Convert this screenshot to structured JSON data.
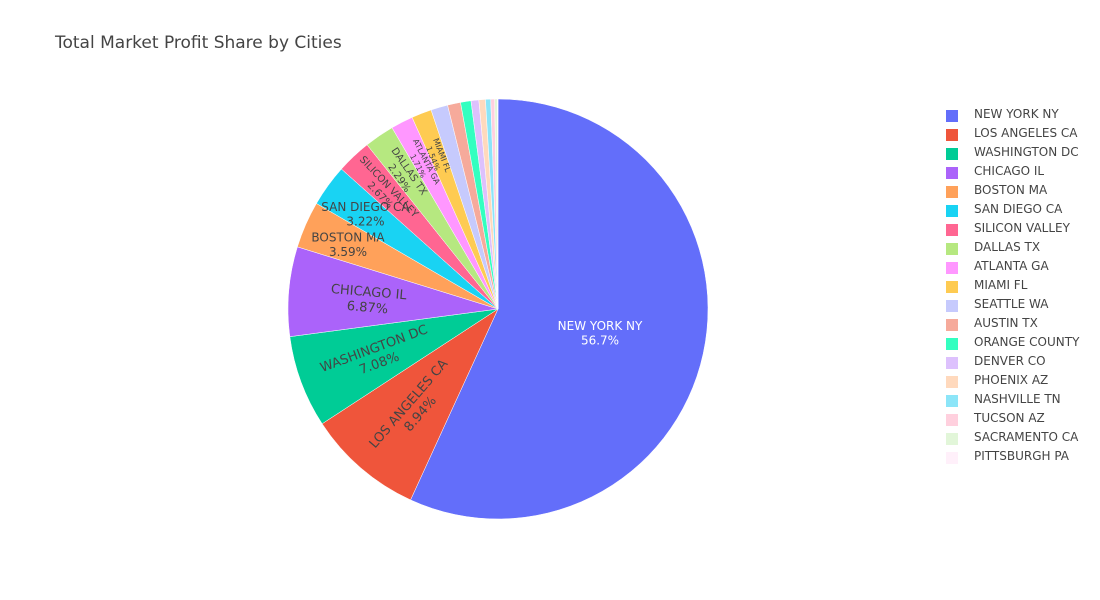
{
  "chart_data": {
    "type": "pie",
    "title": "Total Market Profit Share by Cities",
    "legend_position": "right",
    "direction": "clockwise",
    "start": "top",
    "slices": [
      {
        "label": "NEW YORK NY",
        "value": 56.7,
        "pct": "56.7%",
        "color": "#636efa"
      },
      {
        "label": "LOS ANGELES CA",
        "value": 8.94,
        "pct": "8.94%",
        "color": "#EF553B"
      },
      {
        "label": "WASHINGTON DC",
        "value": 7.08,
        "pct": "7.08%",
        "color": "#00cc96"
      },
      {
        "label": "CHICAGO IL",
        "value": 6.87,
        "pct": "6.87%",
        "color": "#ab63fa"
      },
      {
        "label": "BOSTON MA",
        "value": 3.59,
        "pct": "3.59%",
        "color": "#FFA15A"
      },
      {
        "label": "SAN DIEGO CA",
        "value": 3.22,
        "pct": "3.22%",
        "color": "#19d3f3"
      },
      {
        "label": "SILICON VALLEY",
        "value": 2.67,
        "pct": "2.67%",
        "color": "#FF6692"
      },
      {
        "label": "DALLAS TX",
        "value": 2.29,
        "pct": "2.29%",
        "color": "#B6E880"
      },
      {
        "label": "ATLANTA GA",
        "value": 1.71,
        "pct": "1.71%",
        "color": "#FF97FF"
      },
      {
        "label": "MIAMI FL",
        "value": 1.54,
        "pct": "1.54%",
        "color": "#FECB52"
      },
      {
        "label": "SEATTLE WA",
        "value": 1.3,
        "pct": "",
        "color": "#c6cafd"
      },
      {
        "label": "AUSTIN TX",
        "value": 1.0,
        "pct": "",
        "color": "#f6aa9b"
      },
      {
        "label": "ORANGE COUNTY",
        "value": 0.8,
        "pct": "",
        "color": "#33ffc0"
      },
      {
        "label": "DENVER CO",
        "value": 0.6,
        "pct": "",
        "color": "#ddc1fd"
      },
      {
        "label": "PHOENIX AZ",
        "value": 0.5,
        "pct": "",
        "color": "#ffd9bd"
      },
      {
        "label": "NASHVILLE TN",
        "value": 0.4,
        "pct": "",
        "color": "#8ce5f8"
      },
      {
        "label": "TUCSON AZ",
        "value": 0.3,
        "pct": "",
        "color": "#ffd0de"
      },
      {
        "label": "SACRAMENTO CA",
        "value": 0.2,
        "pct": "",
        "color": "#e2f6d9"
      },
      {
        "label": "PITTSBURGH PA",
        "value": 0.05,
        "pct": "",
        "color": "#fff0fa"
      }
    ]
  }
}
